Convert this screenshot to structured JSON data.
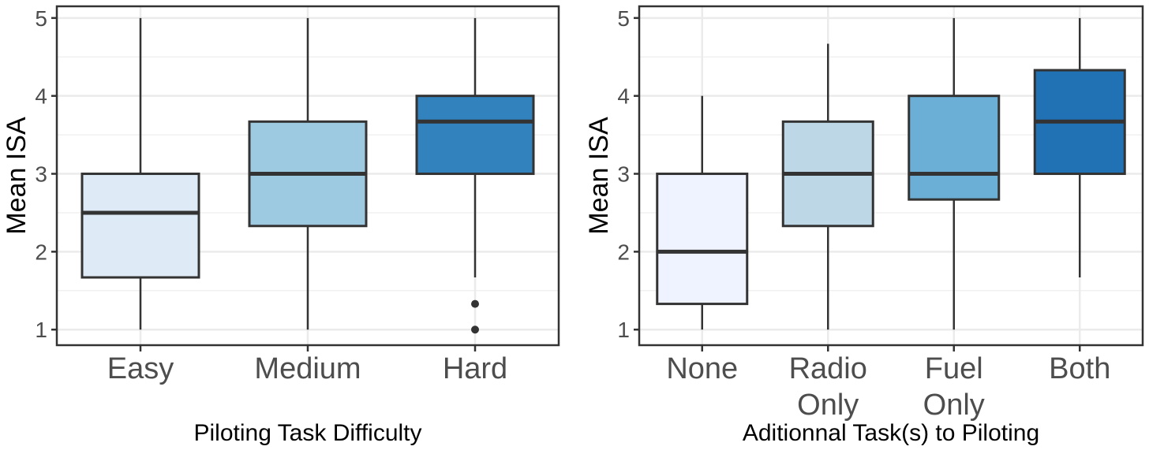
{
  "chart_data": [
    {
      "type": "box",
      "title": "",
      "xlabel": "Piloting Task Difficulty",
      "ylabel": "Mean ISA",
      "ylim": [
        0.8,
        5.15
      ],
      "yticks": [
        1,
        2,
        3,
        4,
        5
      ],
      "grid": true,
      "categories": [
        "Easy",
        "Medium",
        "Hard"
      ],
      "boxes": [
        {
          "category": "Easy",
          "min": 1,
          "q1": 1.67,
          "median": 2.5,
          "q3": 3.0,
          "max": 5,
          "outliers": [],
          "color": "#deebf7"
        },
        {
          "category": "Medium",
          "min": 1,
          "q1": 2.33,
          "median": 3.0,
          "q3": 3.67,
          "max": 5,
          "outliers": [],
          "color": "#9ecae1"
        },
        {
          "category": "Hard",
          "min": 1.67,
          "q1": 3.0,
          "median": 3.67,
          "q3": 4.0,
          "max": 5,
          "outliers": [
            1.33,
            1.0
          ],
          "color": "#3182bd"
        }
      ]
    },
    {
      "type": "box",
      "title": "",
      "xlabel": "Aditionnal Task(s) to Piloting",
      "ylabel": "Mean ISA",
      "ylim": [
        0.8,
        5.15
      ],
      "yticks": [
        1,
        2,
        3,
        4,
        5
      ],
      "grid": true,
      "categories": [
        [
          "None"
        ],
        [
          "Radio",
          "Only"
        ],
        [
          "Fuel",
          "Only"
        ],
        [
          "Both"
        ]
      ],
      "boxes": [
        {
          "category": "None",
          "min": 1,
          "q1": 1.33,
          "median": 2.0,
          "q3": 3.0,
          "max": 4,
          "outliers": [],
          "color": "#eff3ff"
        },
        {
          "category": "Radio Only",
          "min": 1,
          "q1": 2.33,
          "median": 3.0,
          "q3": 3.67,
          "max": 4.67,
          "outliers": [],
          "color": "#bdd7e7"
        },
        {
          "category": "Fuel Only",
          "min": 1,
          "q1": 2.67,
          "median": 3.0,
          "q3": 4.0,
          "max": 5,
          "outliers": [],
          "color": "#6baed6"
        },
        {
          "category": "Both",
          "min": 1.67,
          "q1": 3.0,
          "median": 3.67,
          "q3": 4.33,
          "max": 5,
          "outliers": [],
          "color": "#2171b5"
        }
      ]
    }
  ]
}
